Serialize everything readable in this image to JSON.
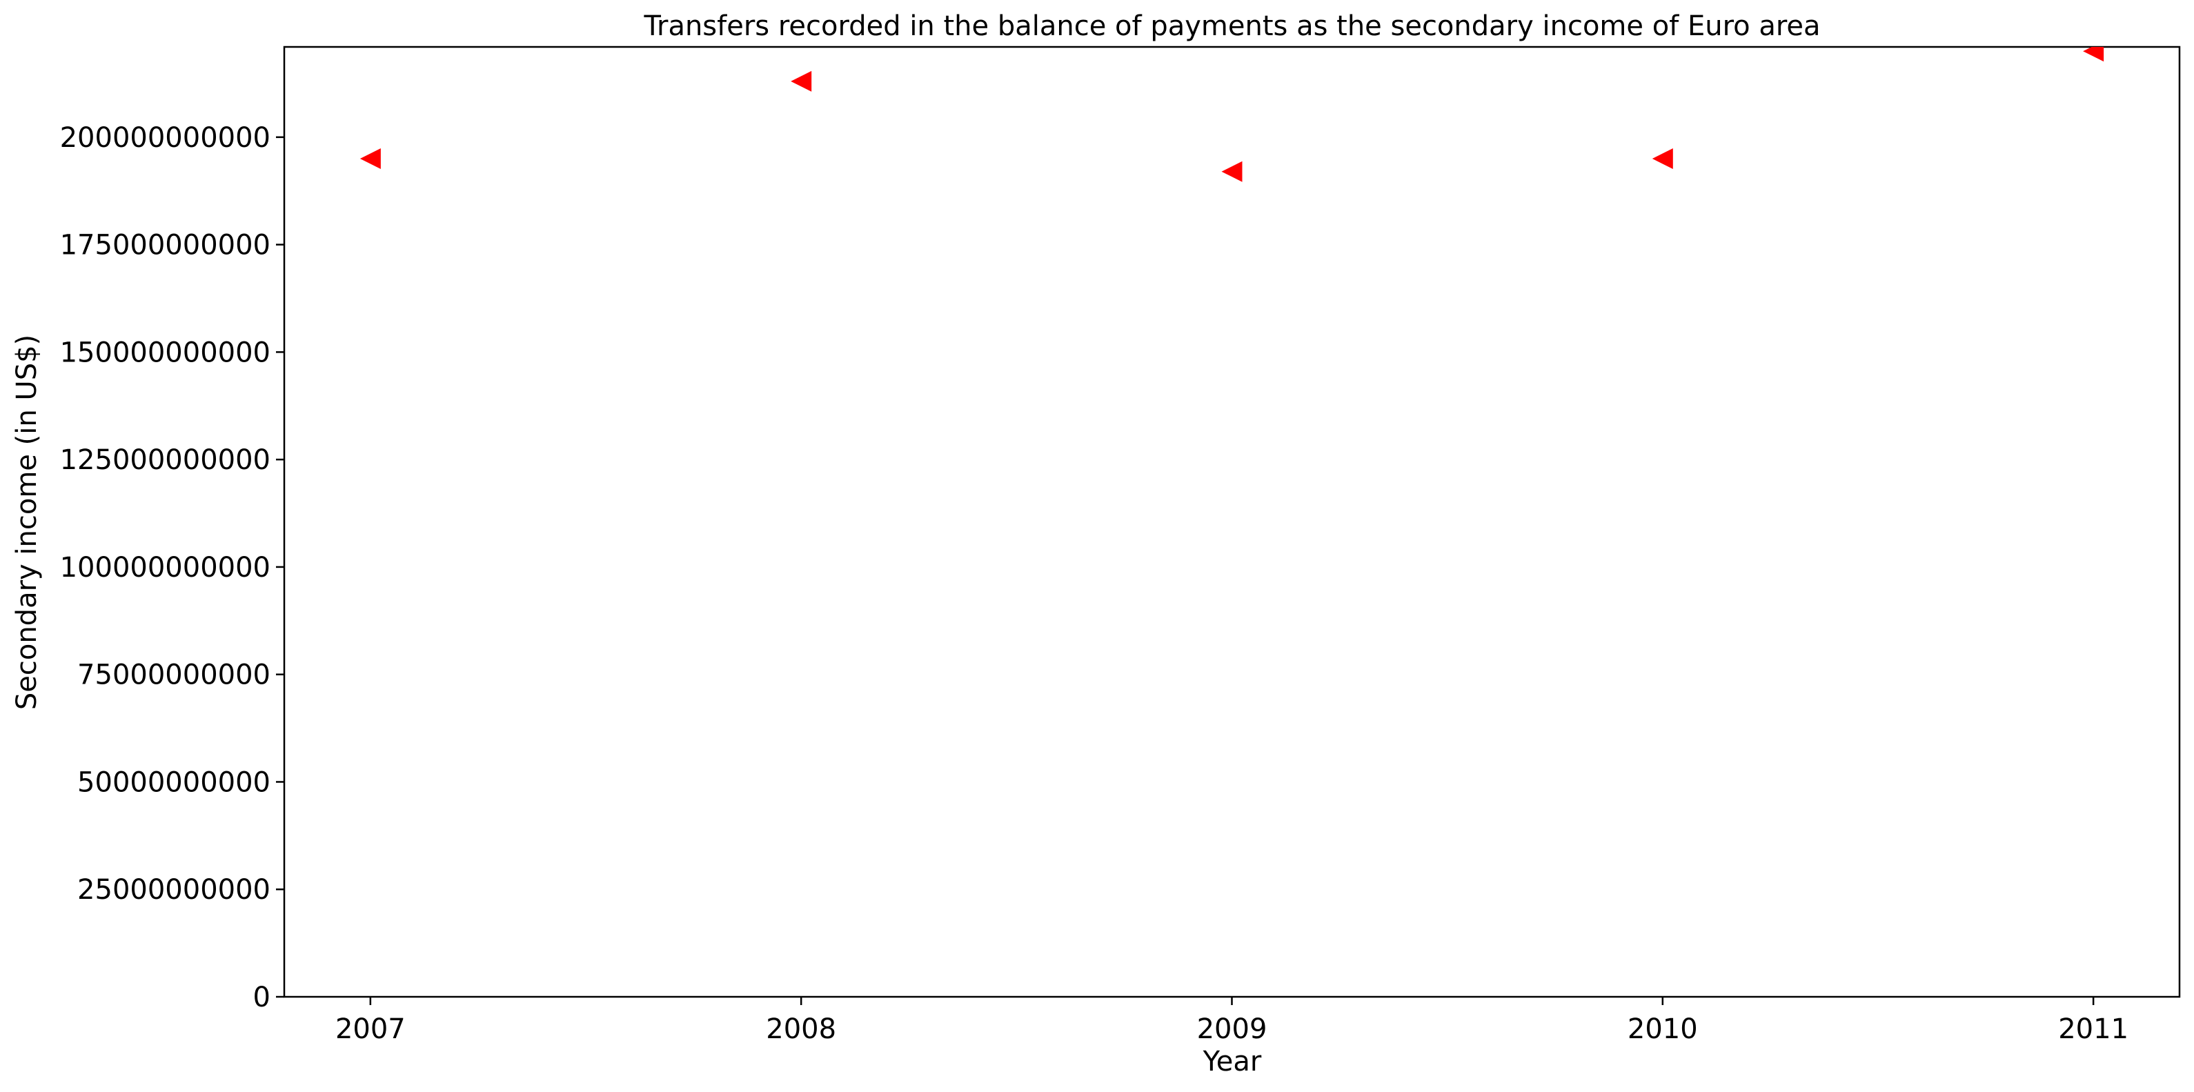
{
  "chart_data": {
    "type": "scatter",
    "title": "Transfers recorded in the balance of payments as the secondary income of Euro area",
    "xlabel": "Year",
    "ylabel": "Secondary income (in US$)",
    "x": [
      2007,
      2008,
      2009,
      2010,
      2011
    ],
    "x_tick_labels": [
      "2007",
      "2008",
      "2009",
      "2010",
      "2011"
    ],
    "series": [
      {
        "values": [
          195000000000,
          213000000000,
          192000000000,
          195000000000,
          220000000000
        ],
        "color": "#ff0000",
        "marker": "triangle-left"
      }
    ],
    "y_ticks": [
      0,
      25000000000,
      50000000000,
      75000000000,
      100000000000,
      125000000000,
      150000000000,
      175000000000,
      200000000000
    ],
    "y_tick_labels": [
      "0",
      "25000000000",
      "50000000000",
      "75000000000",
      "100000000000",
      "125000000000",
      "150000000000",
      "175000000000",
      "200000000000"
    ],
    "xlim": [
      2006.8,
      2011.2
    ],
    "ylim": [
      0,
      221000000000
    ],
    "grid": false,
    "legend": "none"
  }
}
